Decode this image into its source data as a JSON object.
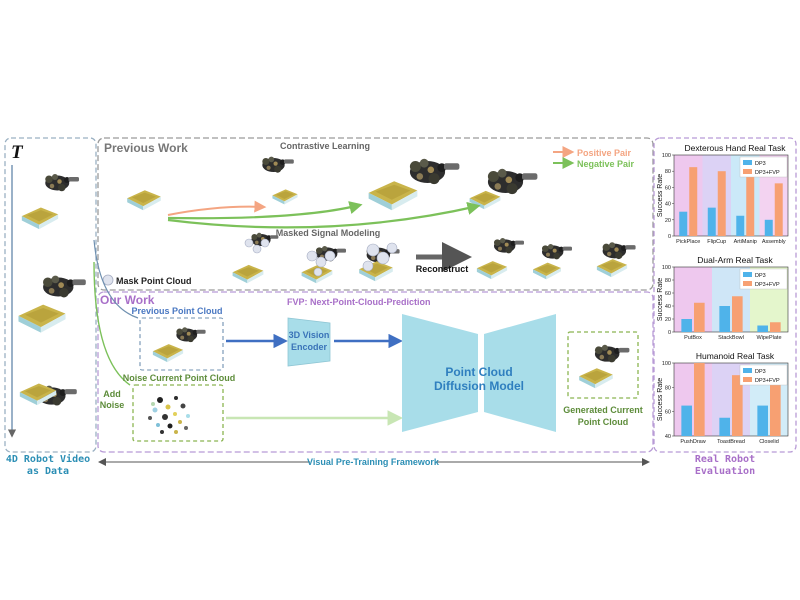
{
  "left": {
    "time_symbol": "T",
    "caption_line1": "4D Robot Video",
    "caption_line2": "as Data"
  },
  "previous": {
    "title": "Previous Work",
    "contrastive": "Contrastive Learning",
    "masked": "Masked Signal Modeling",
    "reconstruct": "Reconstruct",
    "mask_legend": "Mask Point Cloud",
    "positive_pair": "Positive Pair",
    "negative_pair": "Negative Pair"
  },
  "ours": {
    "title": "Our Work",
    "fvp": "FVP: Next-Point-Cloud-Prediction",
    "prev_pc": "Previous Point Cloud",
    "noise_pc": "Noise Current Point Cloud",
    "add_noise_1": "Add",
    "add_noise_2": "Noise",
    "encoder_1": "3D Vision",
    "encoder_2": "Encoder",
    "diffusion_1": "Point Cloud",
    "diffusion_2": "Diffusion Model",
    "generated_1": "Generated Current",
    "generated_2": "Point Cloud"
  },
  "bottom": {
    "framework": "Visual Pre-Training Framework",
    "real_eval_1": "Real Robot",
    "real_eval_2": "Evaluation"
  },
  "colors": {
    "dp3": "#4fb3ea",
    "dp3fvp": "#f7a072",
    "positive": "#f4a582",
    "negative": "#7cc15a",
    "encoder": "#a8dde9",
    "purple": "#a86fc8",
    "green_dash": "#8bb552",
    "gray_dash": "#9a9a9a"
  },
  "chart_data": [
    {
      "type": "bar",
      "title": "Dexterous Hand Real Task",
      "ylabel": "Success Rate",
      "ylim": [
        0,
        100
      ],
      "yticks": [
        0,
        20,
        40,
        60,
        80,
        100
      ],
      "categories": [
        "PickPlace",
        "FlipCup",
        "ArtiManip",
        "Assembly"
      ],
      "bands": [
        "#eec8ee",
        "#dcd2f5",
        "#cbe9f8",
        "#f3d3f1"
      ],
      "series": [
        {
          "name": "DP3",
          "values": [
            30,
            35,
            25,
            20
          ]
        },
        {
          "name": "DP3+FVP",
          "values": [
            85,
            80,
            80,
            65
          ]
        }
      ]
    },
    {
      "type": "bar",
      "title": "Dual-Arm Real Task",
      "ylabel": "Success Rate",
      "ylim": [
        0,
        100
      ],
      "yticks": [
        0,
        20,
        40,
        60,
        80,
        100
      ],
      "categories": [
        "PutBox",
        "StackBowl",
        "WipePlate"
      ],
      "bands": [
        "#eec8ee",
        "#cfe6f7",
        "#e4f6cc"
      ],
      "series": [
        {
          "name": "DP3",
          "values": [
            20,
            40,
            10
          ]
        },
        {
          "name": "DP3+FVP",
          "values": [
            45,
            55,
            15
          ]
        }
      ]
    },
    {
      "type": "bar",
      "title": "Humanoid Real Task",
      "ylabel": "Success Rate",
      "ylim": [
        40,
        100
      ],
      "yticks": [
        40,
        60,
        80,
        100
      ],
      "categories": [
        "PushDraw",
        "ToastBread",
        "Closelid"
      ],
      "bands": [
        "#eec8ee",
        "#dcd2f5",
        "#d2ecf8"
      ],
      "series": [
        {
          "name": "DP3",
          "values": [
            65,
            55,
            65
          ]
        },
        {
          "name": "DP3+FVP",
          "values": [
            100,
            90,
            90
          ]
        }
      ]
    }
  ]
}
